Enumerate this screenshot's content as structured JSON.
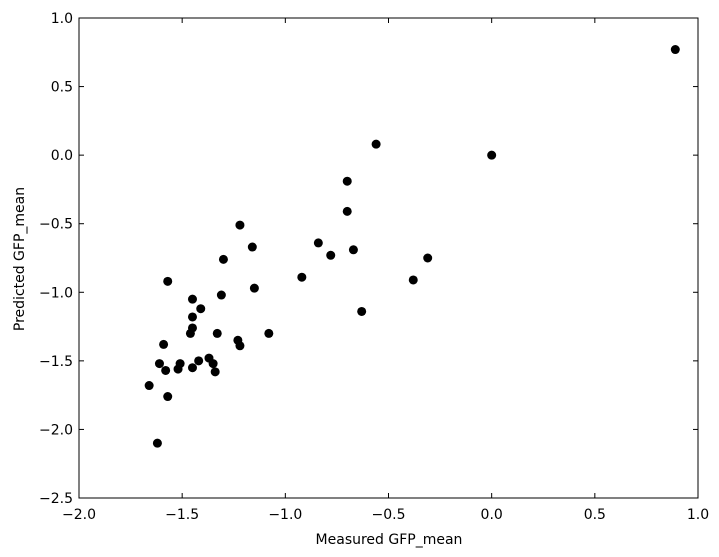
{
  "chart_data": {
    "type": "scatter",
    "title": "",
    "xlabel": "Measured GFP_mean",
    "ylabel": "Predicted GFP_mean",
    "xlim": [
      -2.0,
      1.0
    ],
    "ylim": [
      -2.5,
      1.0
    ],
    "xticks": [
      -2.0,
      -1.5,
      -1.0,
      -0.5,
      0.0,
      0.5,
      1.0
    ],
    "yticks": [
      -2.5,
      -2.0,
      -1.5,
      -1.0,
      -0.5,
      0.0,
      0.5,
      1.0
    ],
    "xtick_labels": [
      "−2.0",
      "−1.5",
      "−1.0",
      "−0.5",
      "0.0",
      "0.5",
      "1.0"
    ],
    "ytick_labels": [
      "−2.5",
      "−2.0",
      "−1.5",
      "−1.0",
      "−0.5",
      "0.0",
      "0.5",
      "1.0"
    ],
    "grid": false,
    "legend": "none",
    "marker_color": "#000000",
    "points": [
      {
        "x": 0.89,
        "y": 0.77
      },
      {
        "x": -0.56,
        "y": 0.08
      },
      {
        "x": 0.0,
        "y": 0.0
      },
      {
        "x": -0.7,
        "y": -0.19
      },
      {
        "x": -0.7,
        "y": -0.41
      },
      {
        "x": -1.22,
        "y": -0.51
      },
      {
        "x": -0.84,
        "y": -0.64
      },
      {
        "x": -1.16,
        "y": -0.67
      },
      {
        "x": -0.67,
        "y": -0.69
      },
      {
        "x": -0.78,
        "y": -0.73
      },
      {
        "x": -0.31,
        "y": -0.75
      },
      {
        "x": -1.3,
        "y": -0.76
      },
      {
        "x": -0.92,
        "y": -0.89
      },
      {
        "x": -0.38,
        "y": -0.91
      },
      {
        "x": -1.57,
        "y": -0.92
      },
      {
        "x": -1.15,
        "y": -0.97
      },
      {
        "x": -1.31,
        "y": -1.02
      },
      {
        "x": -1.45,
        "y": -1.05
      },
      {
        "x": -1.41,
        "y": -1.12
      },
      {
        "x": -0.63,
        "y": -1.14
      },
      {
        "x": -1.45,
        "y": -1.18
      },
      {
        "x": -1.45,
        "y": -1.26
      },
      {
        "x": -1.46,
        "y": -1.3
      },
      {
        "x": -1.33,
        "y": -1.3
      },
      {
        "x": -1.08,
        "y": -1.3
      },
      {
        "x": -1.23,
        "y": -1.35
      },
      {
        "x": -1.59,
        "y": -1.38
      },
      {
        "x": -1.22,
        "y": -1.39
      },
      {
        "x": -1.37,
        "y": -1.48
      },
      {
        "x": -1.42,
        "y": -1.5
      },
      {
        "x": -1.51,
        "y": -1.52
      },
      {
        "x": -1.35,
        "y": -1.52
      },
      {
        "x": -1.61,
        "y": -1.52
      },
      {
        "x": -1.45,
        "y": -1.55
      },
      {
        "x": -1.52,
        "y": -1.56
      },
      {
        "x": -1.58,
        "y": -1.57
      },
      {
        "x": -1.34,
        "y": -1.58
      },
      {
        "x": -1.66,
        "y": -1.68
      },
      {
        "x": -1.57,
        "y": -1.76
      },
      {
        "x": -1.62,
        "y": -2.1
      }
    ]
  }
}
